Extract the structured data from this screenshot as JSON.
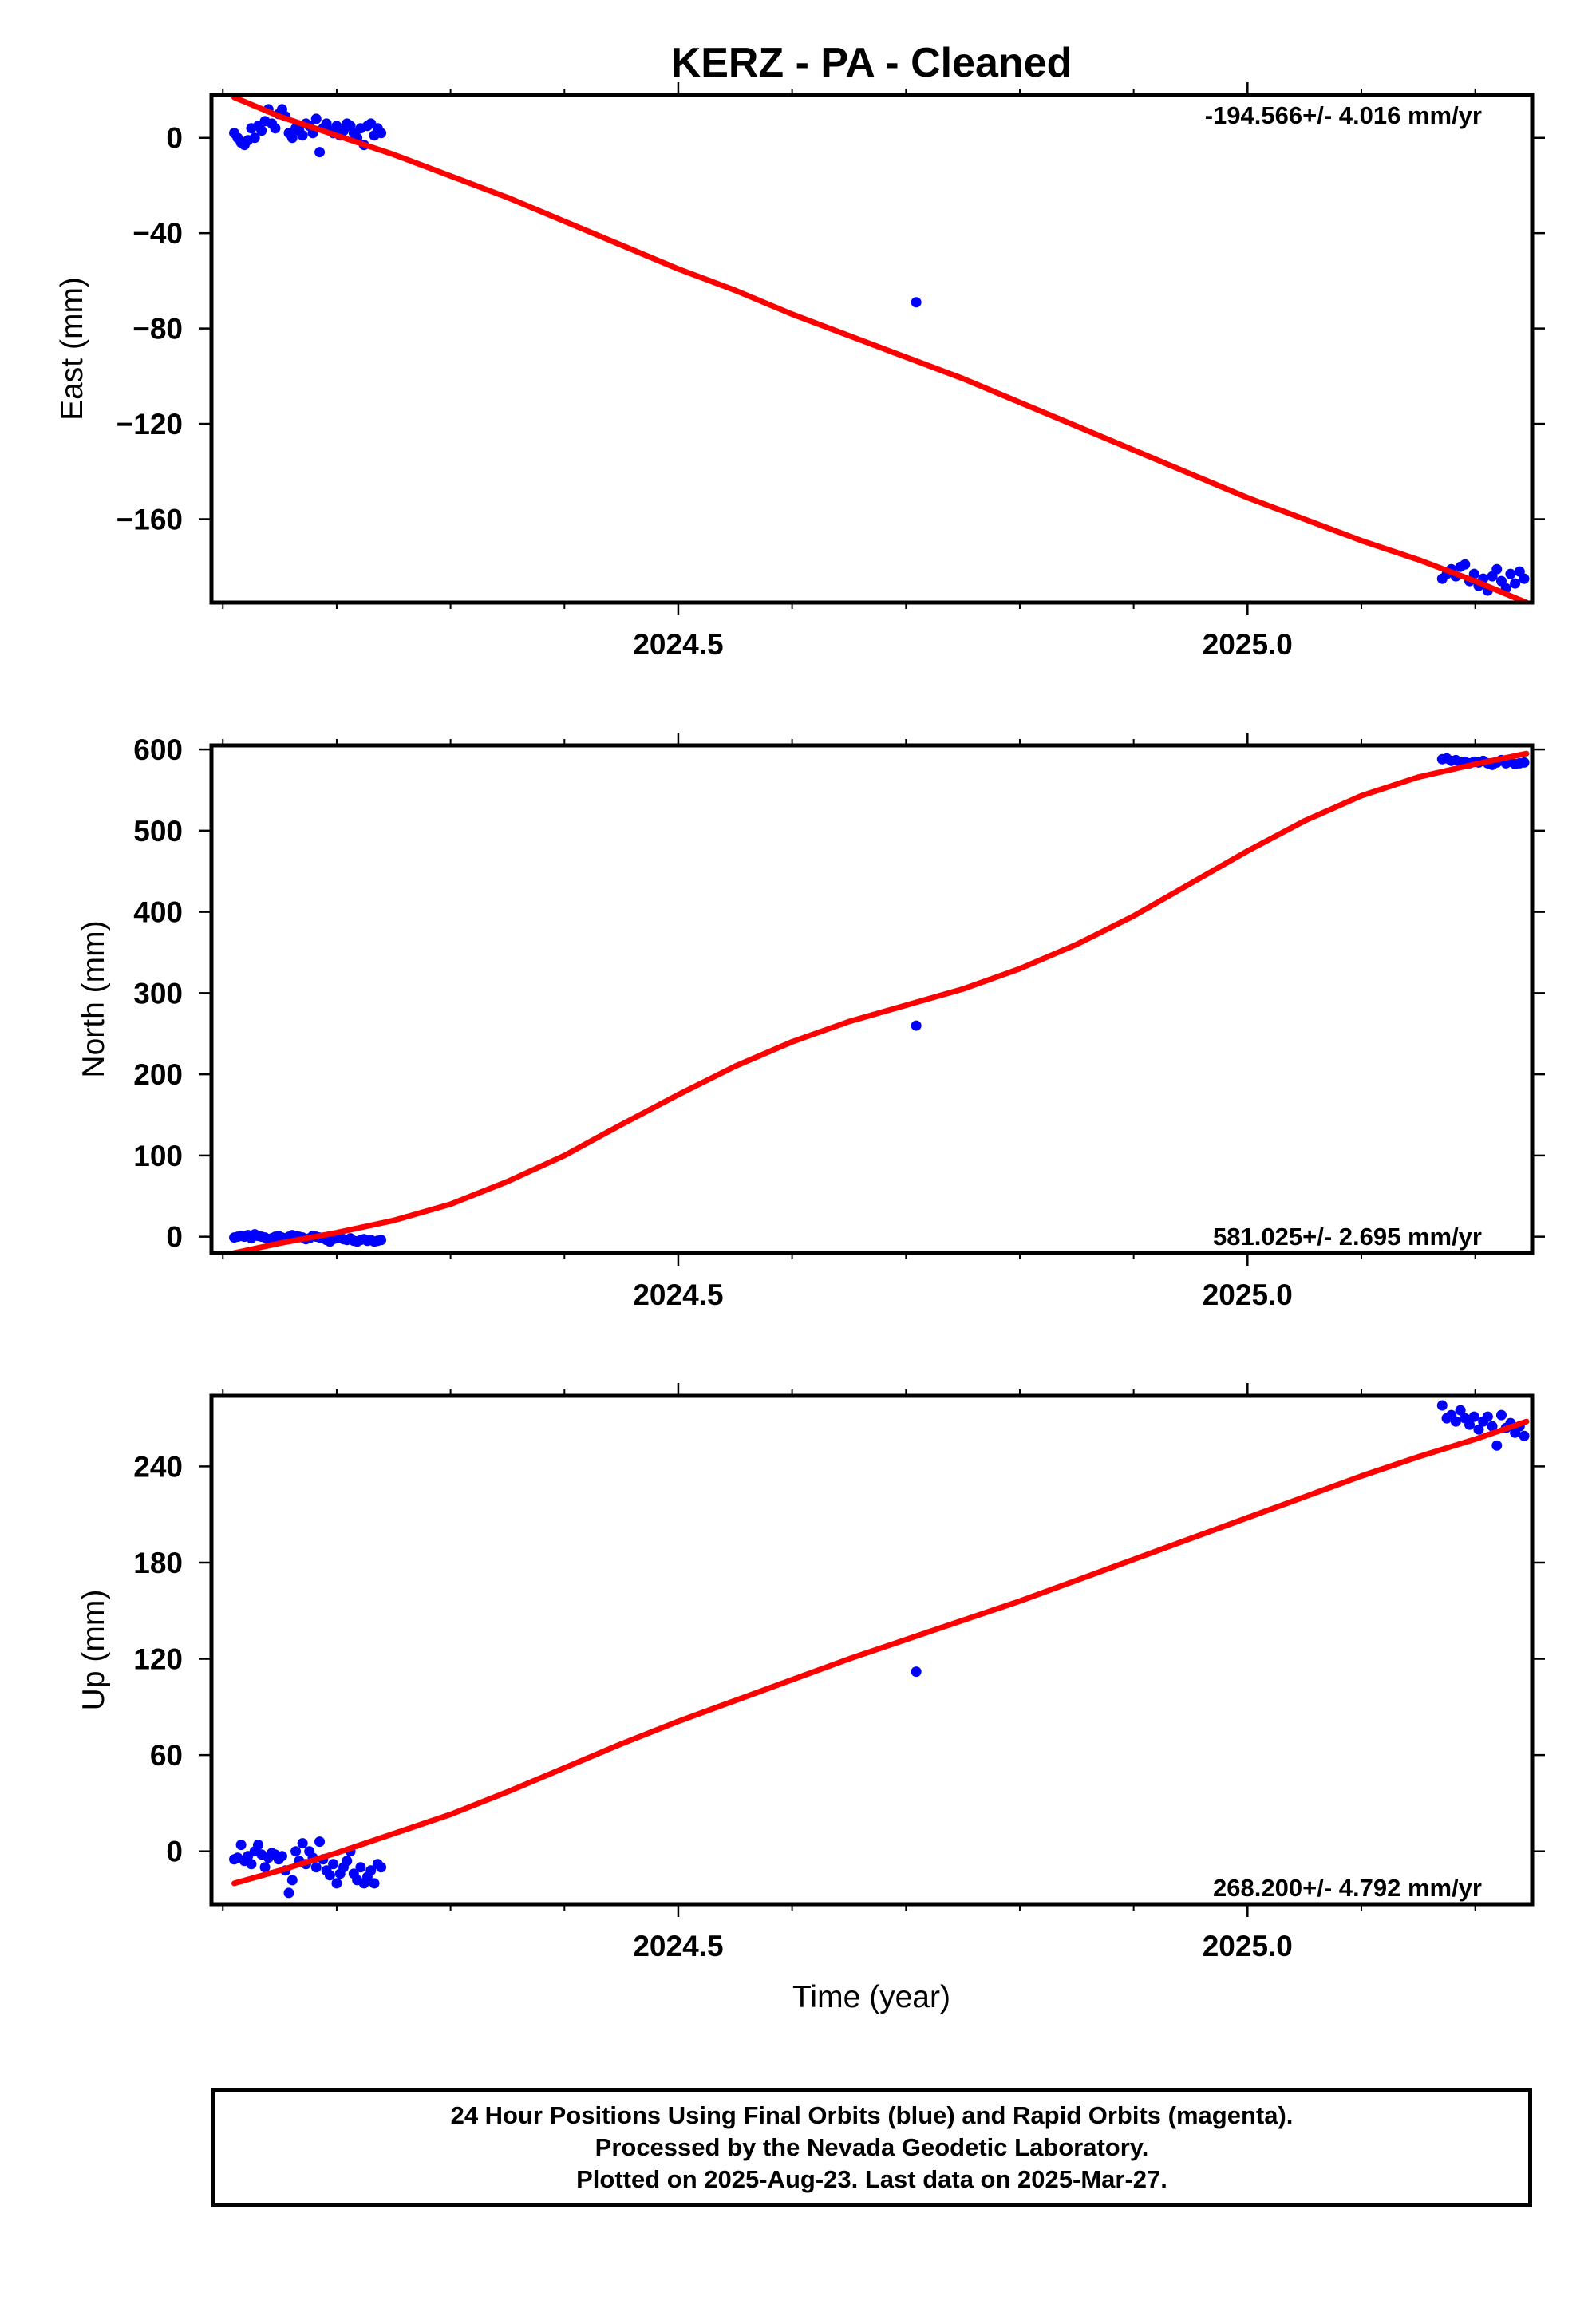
{
  "figure": {
    "title": "KERZ  - PA - Cleaned",
    "xlabel": "Time (year)"
  },
  "chart_data": [
    {
      "type": "scatter",
      "panel": "east",
      "ylabel": "East (mm)",
      "xlim": [
        2024.09,
        2025.25
      ],
      "ylim": [
        -195,
        18
      ],
      "x_ticks": [
        2024.5,
        2025.0
      ],
      "x_tick_labels": [
        "2024.5",
        "2025.0"
      ],
      "y_ticks": [
        0,
        -40,
        -80,
        -120,
        -160
      ],
      "y_tick_labels": [
        "0",
        "−40",
        "−80",
        "−120",
        "−160"
      ],
      "rate_label": "-194.566+/- 4.016 mm/yr",
      "rate_label_position": "top-right",
      "series": [
        {
          "name": "Final Orbits (blue)",
          "color": "#0000ff",
          "x": [
            2024.11,
            2024.113,
            2024.116,
            2024.119,
            2024.122,
            2024.125,
            2024.128,
            2024.131,
            2024.134,
            2024.137,
            2024.14,
            2024.143,
            2024.146,
            2024.149,
            2024.152,
            2024.155,
            2024.158,
            2024.161,
            2024.164,
            2024.167,
            2024.17,
            2024.173,
            2024.176,
            2024.179,
            2024.182,
            2024.185,
            2024.188,
            2024.191,
            2024.194,
            2024.197,
            2024.2,
            2024.203,
            2024.206,
            2024.209,
            2024.212,
            2024.215,
            2024.218,
            2024.221,
            2024.224,
            2024.227,
            2024.23,
            2024.233,
            2024.236,
            2024.239,
            2024.709,
            2025.171,
            2025.175,
            2025.179,
            2025.183,
            2025.187,
            2025.191,
            2025.195,
            2025.199,
            2025.203,
            2025.207,
            2025.211,
            2025.215,
            2025.219,
            2025.223,
            2025.227,
            2025.231,
            2025.235,
            2025.239,
            2025.243
          ],
          "y": [
            2,
            0,
            -2,
            -3,
            -1,
            4,
            0,
            5,
            3,
            7,
            12,
            6,
            4,
            10,
            12,
            9,
            2,
            0,
            4,
            3,
            1,
            6,
            5,
            2,
            8,
            -6,
            4,
            6,
            3,
            2,
            5,
            1,
            3,
            6,
            5,
            2,
            0,
            4,
            -3,
            5,
            6,
            1,
            4,
            2,
            -69,
            -185,
            -183,
            -181,
            -184,
            -180,
            -179,
            -186,
            -183,
            -188,
            -185,
            -190,
            -184,
            -181,
            -186,
            -189,
            -183,
            -187,
            -182,
            -185
          ]
        }
      ],
      "fit": {
        "color": "#ff0000",
        "x": [
          2024.11,
          2024.15,
          2024.2,
          2024.25,
          2024.3,
          2024.35,
          2024.4,
          2024.45,
          2024.5,
          2024.55,
          2024.6,
          2024.65,
          2024.7,
          2024.75,
          2024.8,
          2024.85,
          2024.9,
          2024.95,
          2025.0,
          2025.05,
          2025.1,
          2025.15,
          2025.2,
          2025.245
        ],
        "y": [
          17,
          9,
          1,
          -7,
          -16,
          -25,
          -35,
          -45,
          -55,
          -64,
          -74,
          -83,
          -92,
          -101,
          -111,
          -121,
          -131,
          -141,
          -151,
          -160,
          -169,
          -177,
          -186,
          -195
        ]
      }
    },
    {
      "type": "scatter",
      "panel": "north",
      "ylabel": "North (mm)",
      "xlim": [
        2024.09,
        2025.25
      ],
      "ylim": [
        -20,
        605
      ],
      "x_ticks": [
        2024.5,
        2025.0
      ],
      "x_tick_labels": [
        "2024.5",
        "2025.0"
      ],
      "y_ticks": [
        600,
        500,
        400,
        300,
        200,
        100,
        0
      ],
      "y_tick_labels": [
        "600",
        "500",
        "400",
        "300",
        "200",
        "100",
        "0"
      ],
      "rate_label": "581.025+/- 2.695 mm/yr",
      "rate_label_position": "bottom-right",
      "series": [
        {
          "name": "Final Orbits (blue)",
          "color": "#0000ff",
          "x": [
            2024.11,
            2024.113,
            2024.116,
            2024.119,
            2024.122,
            2024.125,
            2024.128,
            2024.131,
            2024.134,
            2024.137,
            2024.14,
            2024.143,
            2024.146,
            2024.149,
            2024.152,
            2024.155,
            2024.158,
            2024.161,
            2024.164,
            2024.167,
            2024.17,
            2024.173,
            2024.176,
            2024.179,
            2024.182,
            2024.185,
            2024.188,
            2024.191,
            2024.194,
            2024.197,
            2024.2,
            2024.203,
            2024.206,
            2024.209,
            2024.212,
            2024.215,
            2024.218,
            2024.221,
            2024.224,
            2024.227,
            2024.23,
            2024.233,
            2024.236,
            2024.239,
            2024.709,
            2025.171,
            2025.175,
            2025.179,
            2025.183,
            2025.187,
            2025.191,
            2025.195,
            2025.199,
            2025.203,
            2025.207,
            2025.211,
            2025.215,
            2025.219,
            2025.223,
            2025.227,
            2025.231,
            2025.235,
            2025.239,
            2025.243
          ],
          "y": [
            -1,
            0,
            1,
            0,
            2,
            -2,
            3,
            1,
            0,
            -1,
            -3,
            -2,
            0,
            1,
            -1,
            -2,
            0,
            2,
            1,
            0,
            -1,
            -3,
            -2,
            1,
            0,
            -1,
            -2,
            -4,
            -6,
            -3,
            -2,
            -1,
            -3,
            -4,
            -2,
            -5,
            -6,
            -4,
            -3,
            -5,
            -4,
            -6,
            -5,
            -4,
            260,
            588,
            589,
            586,
            587,
            584,
            585,
            583,
            585,
            584,
            586,
            583,
            581,
            584,
            587,
            583,
            585,
            582,
            583,
            584
          ]
        }
      ],
      "fit": {
        "color": "#ff0000",
        "x": [
          2024.11,
          2024.15,
          2024.2,
          2024.25,
          2024.3,
          2024.35,
          2024.4,
          2024.45,
          2024.5,
          2024.55,
          2024.6,
          2024.65,
          2024.7,
          2024.75,
          2024.8,
          2024.85,
          2024.9,
          2024.95,
          2025.0,
          2025.05,
          2025.1,
          2025.15,
          2025.2,
          2025.245
        ],
        "y": [
          -20,
          -8,
          5,
          20,
          40,
          68,
          100,
          138,
          175,
          210,
          240,
          265,
          285,
          305,
          330,
          360,
          395,
          435,
          475,
          512,
          543,
          566,
          582,
          595
        ]
      }
    },
    {
      "type": "scatter",
      "panel": "up",
      "ylabel": "Up (mm)",
      "xlim": [
        2024.09,
        2025.25
      ],
      "ylim": [
        -33,
        284
      ],
      "x_ticks": [
        2024.5,
        2025.0
      ],
      "x_tick_labels": [
        "2024.5",
        "2025.0"
      ],
      "y_ticks": [
        240,
        180,
        120,
        60,
        0
      ],
      "y_tick_labels": [
        "240",
        "180",
        "120",
        "60",
        "0"
      ],
      "rate_label": "268.200+/- 4.792 mm/yr",
      "rate_label_position": "bottom-right",
      "series": [
        {
          "name": "Final Orbits (blue)",
          "color": "#0000ff",
          "x": [
            2024.11,
            2024.113,
            2024.116,
            2024.119,
            2024.122,
            2024.125,
            2024.128,
            2024.131,
            2024.134,
            2024.137,
            2024.14,
            2024.143,
            2024.146,
            2024.149,
            2024.152,
            2024.155,
            2024.158,
            2024.161,
            2024.164,
            2024.167,
            2024.17,
            2024.173,
            2024.176,
            2024.179,
            2024.182,
            2024.185,
            2024.188,
            2024.191,
            2024.194,
            2024.197,
            2024.2,
            2024.203,
            2024.206,
            2024.209,
            2024.212,
            2024.215,
            2024.218,
            2024.221,
            2024.224,
            2024.227,
            2024.23,
            2024.233,
            2024.236,
            2024.239,
            2024.709,
            2025.171,
            2025.175,
            2025.179,
            2025.183,
            2025.187,
            2025.191,
            2025.195,
            2025.199,
            2025.203,
            2025.207,
            2025.211,
            2025.215,
            2025.219,
            2025.223,
            2025.227,
            2025.231,
            2025.235,
            2025.239,
            2025.243
          ],
          "y": [
            -5,
            -4,
            4,
            -6,
            -3,
            -8,
            0,
            4,
            -2,
            -10,
            -4,
            -1,
            -2,
            -5,
            -3,
            -12,
            -26,
            -18,
            0,
            -6,
            5,
            -8,
            0,
            -4,
            -10,
            6,
            -5,
            -12,
            -15,
            -8,
            -20,
            -14,
            -10,
            -6,
            0,
            -14,
            -18,
            -10,
            -20,
            -16,
            -12,
            -20,
            -8,
            -10,
            112,
            278,
            270,
            272,
            268,
            275,
            270,
            266,
            271,
            263,
            268,
            271,
            265,
            253,
            272,
            264,
            267,
            261,
            265,
            259
          ]
        }
      ],
      "fit": {
        "color": "#ff0000",
        "x": [
          2024.11,
          2024.15,
          2024.2,
          2024.25,
          2024.3,
          2024.35,
          2024.4,
          2024.45,
          2024.5,
          2024.55,
          2024.6,
          2024.65,
          2024.7,
          2024.75,
          2024.8,
          2024.85,
          2024.9,
          2024.95,
          2025.0,
          2025.05,
          2025.1,
          2025.15,
          2025.2,
          2025.245
        ],
        "y": [
          -20,
          -12,
          -1,
          11,
          23,
          37,
          52,
          67,
          81,
          94,
          107,
          120,
          132,
          144,
          156,
          169,
          182,
          195,
          208,
          221,
          234,
          246,
          257,
          268
        ]
      }
    }
  ],
  "footer": {
    "line1": "24 Hour Positions Using Final Orbits (blue) and Rapid Orbits (magenta).",
    "line2": "Processed by the Nevada Geodetic Laboratory.",
    "line3": "Plotted on 2025-Aug-23. Last data on 2025-Mar-27."
  }
}
